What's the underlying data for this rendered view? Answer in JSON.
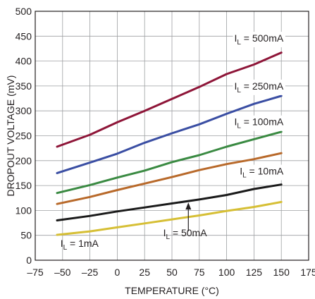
{
  "chart_data": {
    "type": "line",
    "title": "",
    "xlabel": "TEMPERATURE (°C)",
    "ylabel": "DROPOUT VOLTAGE (mV)",
    "xlim": [
      -75,
      175
    ],
    "ylim": [
      0,
      500
    ],
    "x_ticks": [
      "–75",
      "–50",
      "–25",
      "0",
      "25",
      "50",
      "75",
      "100",
      "125",
      "150",
      "175"
    ],
    "y_ticks": [
      "0",
      "50",
      "100",
      "150",
      "200",
      "250",
      "300",
      "350",
      "400",
      "450",
      "500"
    ],
    "grid": true,
    "x": [
      -55,
      -25,
      0,
      25,
      50,
      75,
      100,
      125,
      150
    ],
    "series": [
      {
        "id": "500",
        "annotation": "I_L = 500mA",
        "color": "#8e1538",
        "values": [
          228,
          252,
          277,
          300,
          324,
          348,
          374,
          393,
          417
        ]
      },
      {
        "id": "250",
        "annotation": "I_L = 250mA",
        "color": "#3a4ea3",
        "values": [
          175,
          196,
          214,
          236,
          255,
          273,
          294,
          314,
          330
        ]
      },
      {
        "id": "100",
        "annotation": "I_L = 100mA",
        "color": "#3a8a42",
        "values": [
          135,
          151,
          166,
          180,
          197,
          211,
          228,
          243,
          258
        ]
      },
      {
        "id": "10",
        "annotation": "I_L = 10mA",
        "color": "#b8692a",
        "values": [
          113,
          127,
          141,
          154,
          167,
          181,
          193,
          203,
          215
        ]
      },
      {
        "id": "50",
        "annotation": "I_L = 50mA",
        "color": "#1a1a1a",
        "values": [
          80,
          89,
          98,
          106,
          114,
          122,
          131,
          143,
          152
        ]
      },
      {
        "id": "1",
        "annotation": "I_L = 1mA",
        "color": "#d6bf35",
        "values": [
          51,
          58,
          66,
          74,
          82,
          90,
          99,
          107,
          117
        ]
      }
    ],
    "annotations": [
      {
        "series": "500",
        "prefix": "I",
        "sub": "L",
        "suffix": " = 500mA"
      },
      {
        "series": "250",
        "prefix": "I",
        "sub": "L",
        "suffix": " = 250mA"
      },
      {
        "series": "100",
        "prefix": "I",
        "sub": "L",
        "suffix": " = 100mA"
      },
      {
        "series": "10",
        "prefix": "I",
        "sub": "L",
        "suffix": " = 10mA"
      },
      {
        "series": "50",
        "prefix": "I",
        "sub": "L",
        "suffix": " = 50mA"
      },
      {
        "series": "1",
        "prefix": "I",
        "sub": "L",
        "suffix": " = 1mA"
      }
    ],
    "arrow": {
      "series": "50",
      "x": 65
    }
  }
}
